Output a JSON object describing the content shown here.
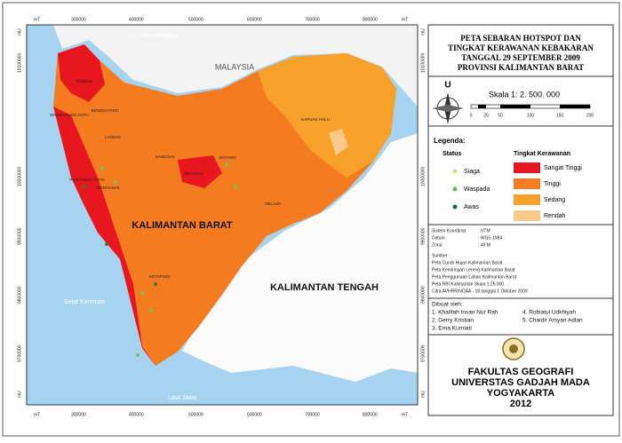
{
  "map": {
    "grid_x": [
      "mT",
      "300000",
      "400000",
      "500000",
      "600000",
      "700000",
      "800000",
      "mT"
    ],
    "grid_y": [
      "mU",
      "10100000",
      "10000000",
      "9900000",
      "9800000",
      "9700000",
      "mU"
    ],
    "places": {
      "sea_north": "Laut China Selatan",
      "malaysia": "MALAYSIA",
      "kalbar": "KALIMANTAN BARAT",
      "kalteng": "KALIMANTAN TENGAH",
      "strait": "Selat Karimata",
      "sea_south": "Laut Jawa"
    },
    "districts": [
      "SAMBAS",
      "SINGKAWANG KOTA",
      "BENGKAYANG",
      "LANDAK",
      "PONTIANAK KOTA",
      "PONTIANAK",
      "SANGGAU",
      "SEKADAU",
      "SINTANG",
      "KAPUAS HULU",
      "MELAWI",
      "KETAPANG"
    ]
  },
  "panel": {
    "title": [
      "PETA SEBARAN HOTSPOT DAN",
      "TINGKAT KERAWANAN KEBAKARAN",
      "TANGGAL 29 SEPTEMBER 2009",
      "PROVINSI KALIMANTAN BARAT"
    ],
    "north": "U",
    "scale": "Skala 1: 2. 500. 000",
    "scale_ticks": [
      "0",
      "25",
      "50",
      "100",
      "150",
      "200"
    ],
    "legend_title": "Legenda:",
    "status_title": "Status",
    "status": [
      "Siaga",
      "Waspada",
      "Awas"
    ],
    "risk_title": "Tingkat Kerawanan",
    "risk": [
      "Sangat Tinggi",
      "Tinggi",
      "Sedang",
      "Rendah"
    ],
    "coords": [
      [
        "Sistem Koordinat",
        ": UTM"
      ],
      [
        "Datum",
        ": WGS 1984"
      ],
      [
        "Zona",
        ": 49 M"
      ]
    ],
    "source_title": "Sumber :",
    "sources": [
      "Peta Curah Hujan Kalimantan Barat",
      "Peta Kemiringan Lereng Kalimantan Barat",
      "Peta Penggunaan Lahan Kalimantan Barat",
      "Peta RBI Kalimantan Skala 1:25.000",
      "Citra AVHRR/NOAA - 18 tanggal 1 Oktober 2009"
    ],
    "authors_title": "Dibuat oleh:",
    "authors": [
      "1. Khalifah Insan Nur Rah",
      "2. Gerry Kristian",
      "3. Erna Kurniati",
      "4. Robiatul Udkhiyah",
      "5. Chaidir Arsyan Adlan"
    ],
    "institution": [
      "FAKULTAS GEOGRAFI",
      "UNIVERSTAS GADJAH MADA",
      "YOGYAKARTA",
      "2012"
    ]
  }
}
